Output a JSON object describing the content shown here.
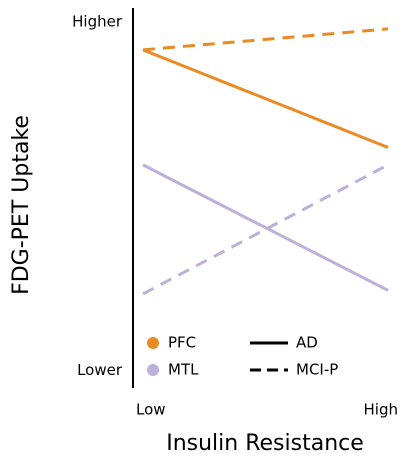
{
  "chart_data": {
    "type": "line",
    "ylabel": "FDG-PET Uptake",
    "xlabel": "Insulin Resistance",
    "categories": [
      "Low",
      "High"
    ],
    "ylim": [
      -5,
      104
    ],
    "yticks": [
      {
        "value": 100,
        "label": "Higher"
      },
      {
        "value": 0,
        "label": "Lower"
      }
    ],
    "series": [
      {
        "color": "#ea8a22",
        "dashed": false,
        "values": [
          92,
          64
        ]
      },
      {
        "color": "#ea8a22",
        "dashed": true,
        "values": [
          92,
          98
        ]
      },
      {
        "color": "#bdb0d9",
        "dashed": false,
        "values": [
          59,
          23
        ]
      },
      {
        "color": "#bdb0d9",
        "dashed": true,
        "values": [
          22,
          59
        ]
      }
    ],
    "legend": {
      "regions": [
        {
          "name": "PFC",
          "color": "#ea8a22"
        },
        {
          "name": "MTL",
          "color": "#bdb0d9"
        }
      ],
      "conditions": [
        {
          "name": "AD",
          "dashed": false
        },
        {
          "name": "MCI-P",
          "dashed": true
        }
      ]
    }
  }
}
